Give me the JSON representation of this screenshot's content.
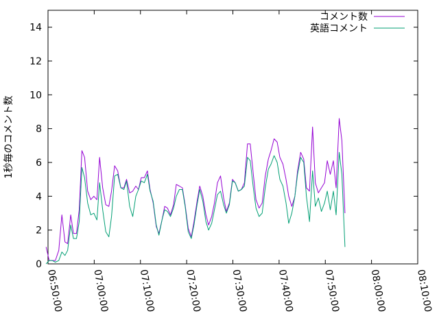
{
  "chart_data": {
    "type": "line",
    "title": "",
    "xlabel": "",
    "ylabel": "1秒毎のコメント数",
    "xlim": [
      "06:50:00",
      "08:10:00"
    ],
    "ylim": [
      0,
      15
    ],
    "xticks": [
      "06:50:00",
      "07:00:00",
      "07:10:00",
      "07:20:00",
      "07:30:00",
      "07:40:00",
      "07:50:00",
      "08:00:00",
      "08:10:00"
    ],
    "yticks": [
      0,
      2,
      4,
      6,
      8,
      10,
      12,
      14
    ],
    "grid": false,
    "legend": "top-right",
    "series": [
      {
        "name": "コメント数",
        "color": "#9400d3",
        "points": [
          [
            "06:49:35",
            1.0
          ],
          [
            "06:50:15",
            0.2
          ],
          [
            "06:50:55",
            0.2
          ],
          [
            "06:51:35",
            0.2
          ],
          [
            "06:52:20",
            0.8
          ],
          [
            "06:53:00",
            2.9
          ],
          [
            "06:53:40",
            1.3
          ],
          [
            "06:54:15",
            1.2
          ],
          [
            "06:54:55",
            2.9
          ],
          [
            "06:55:30",
            1.8
          ],
          [
            "06:56:10",
            1.8
          ],
          [
            "06:56:45",
            3.2
          ],
          [
            "06:57:20",
            6.7
          ],
          [
            "06:57:55",
            6.3
          ],
          [
            "06:58:35",
            4.3
          ],
          [
            "06:59:15",
            3.8
          ],
          [
            "06:59:55",
            4.0
          ],
          [
            "07:00:35",
            3.8
          ],
          [
            "07:01:10",
            6.3
          ],
          [
            "07:01:50",
            4.5
          ],
          [
            "07:02:30",
            3.5
          ],
          [
            "07:03:10",
            3.4
          ],
          [
            "07:03:45",
            4.3
          ],
          [
            "07:04:25",
            5.8
          ],
          [
            "07:05:05",
            5.5
          ],
          [
            "07:05:45",
            4.5
          ],
          [
            "07:06:25",
            4.5
          ],
          [
            "07:07:00",
            5.0
          ],
          [
            "07:07:40",
            4.2
          ],
          [
            "07:08:20",
            4.3
          ],
          [
            "07:09:00",
            4.6
          ],
          [
            "07:09:35",
            4.4
          ],
          [
            "07:10:10",
            5.1
          ],
          [
            "07:10:50",
            5.1
          ],
          [
            "07:11:30",
            5.5
          ],
          [
            "07:12:05",
            4.4
          ],
          [
            "07:12:45",
            3.6
          ],
          [
            "07:13:25",
            2.2
          ],
          [
            "07:14:00",
            1.8
          ],
          [
            "07:14:40",
            2.6
          ],
          [
            "07:15:15",
            3.4
          ],
          [
            "07:15:50",
            3.3
          ],
          [
            "07:16:30",
            2.9
          ],
          [
            "07:17:10",
            3.5
          ],
          [
            "07:17:45",
            4.7
          ],
          [
            "07:18:25",
            4.6
          ],
          [
            "07:19:05",
            4.5
          ],
          [
            "07:19:40",
            3.5
          ],
          [
            "07:20:20",
            2.1
          ],
          [
            "07:21:00",
            1.6
          ],
          [
            "07:21:35",
            2.5
          ],
          [
            "07:22:15",
            3.7
          ],
          [
            "07:22:50",
            4.6
          ],
          [
            "07:23:30",
            4.0
          ],
          [
            "07:24:10",
            2.9
          ],
          [
            "07:24:45",
            2.3
          ],
          [
            "07:25:25",
            2.8
          ],
          [
            "07:26:00",
            3.6
          ],
          [
            "07:26:40",
            4.8
          ],
          [
            "07:27:20",
            5.2
          ],
          [
            "07:28:00",
            3.9
          ],
          [
            "07:28:35",
            3.1
          ],
          [
            "07:29:15",
            3.6
          ],
          [
            "07:29:55",
            5.0
          ],
          [
            "07:30:30",
            4.8
          ],
          [
            "07:31:10",
            4.3
          ],
          [
            "07:31:50",
            4.4
          ],
          [
            "07:32:30",
            4.8
          ],
          [
            "07:33:10",
            7.1
          ],
          [
            "07:33:45",
            7.1
          ],
          [
            "07:34:25",
            5.3
          ],
          [
            "07:35:00",
            3.8
          ],
          [
            "07:35:40",
            3.3
          ],
          [
            "07:36:20",
            3.6
          ],
          [
            "07:37:00",
            5.2
          ],
          [
            "07:37:40",
            6.2
          ],
          [
            "07:38:15",
            6.7
          ],
          [
            "07:38:55",
            7.4
          ],
          [
            "07:39:35",
            7.2
          ],
          [
            "07:40:10",
            6.3
          ],
          [
            "07:40:50",
            5.9
          ],
          [
            "07:41:30",
            5.0
          ],
          [
            "07:42:05",
            4.0
          ],
          [
            "07:42:45",
            3.4
          ],
          [
            "07:43:25",
            4.0
          ],
          [
            "07:44:00",
            5.5
          ],
          [
            "07:44:40",
            6.6
          ],
          [
            "07:45:20",
            6.2
          ],
          [
            "07:45:55",
            4.5
          ],
          [
            "07:46:35",
            4.3
          ],
          [
            "07:47:15",
            8.1
          ],
          [
            "07:47:50",
            4.8
          ],
          [
            "07:48:30",
            4.2
          ],
          [
            "07:49:10",
            4.5
          ],
          [
            "07:49:50",
            4.8
          ],
          [
            "07:50:25",
            6.1
          ],
          [
            "07:51:05",
            5.3
          ],
          [
            "07:51:45",
            6.1
          ],
          [
            "07:52:20",
            4.5
          ],
          [
            "07:53:00",
            8.6
          ],
          [
            "07:53:35",
            7.3
          ],
          [
            "07:54:15",
            3.0
          ]
        ]
      },
      {
        "name": "英語コメント",
        "color": "#009e73",
        "points": [
          [
            "06:49:35",
            0.0
          ],
          [
            "06:50:15",
            0.2
          ],
          [
            "06:50:55",
            0.2
          ],
          [
            "06:51:35",
            0.1
          ],
          [
            "06:52:20",
            0.2
          ],
          [
            "06:53:00",
            0.7
          ],
          [
            "06:53:40",
            0.5
          ],
          [
            "06:54:15",
            0.8
          ],
          [
            "06:54:55",
            2.3
          ],
          [
            "06:55:30",
            1.5
          ],
          [
            "06:56:10",
            1.5
          ],
          [
            "06:56:45",
            2.5
          ],
          [
            "06:57:20",
            5.7
          ],
          [
            "06:57:55",
            5.1
          ],
          [
            "06:58:35",
            3.6
          ],
          [
            "06:59:15",
            2.9
          ],
          [
            "06:59:55",
            3.0
          ],
          [
            "07:00:35",
            2.6
          ],
          [
            "07:01:10",
            4.8
          ],
          [
            "07:01:50",
            3.2
          ],
          [
            "07:02:30",
            1.9
          ],
          [
            "07:03:10",
            1.6
          ],
          [
            "07:03:45",
            2.8
          ],
          [
            "07:04:25",
            5.2
          ],
          [
            "07:05:05",
            5.3
          ],
          [
            "07:05:45",
            4.5
          ],
          [
            "07:06:25",
            4.4
          ],
          [
            "07:07:00",
            4.9
          ],
          [
            "07:07:40",
            3.4
          ],
          [
            "07:08:20",
            2.8
          ],
          [
            "07:09:00",
            4.0
          ],
          [
            "07:09:35",
            4.4
          ],
          [
            "07:10:10",
            4.9
          ],
          [
            "07:10:50",
            4.8
          ],
          [
            "07:11:30",
            5.3
          ],
          [
            "07:12:05",
            4.3
          ],
          [
            "07:12:45",
            3.7
          ],
          [
            "07:13:25",
            2.3
          ],
          [
            "07:14:00",
            1.7
          ],
          [
            "07:14:40",
            2.6
          ],
          [
            "07:15:15",
            3.2
          ],
          [
            "07:15:50",
            3.1
          ],
          [
            "07:16:30",
            2.8
          ],
          [
            "07:17:10",
            3.3
          ],
          [
            "07:17:45",
            4.0
          ],
          [
            "07:18:25",
            4.4
          ],
          [
            "07:19:05",
            4.4
          ],
          [
            "07:19:40",
            3.4
          ],
          [
            "07:20:20",
            1.9
          ],
          [
            "07:21:00",
            1.5
          ],
          [
            "07:21:35",
            2.3
          ],
          [
            "07:22:15",
            3.5
          ],
          [
            "07:22:50",
            4.4
          ],
          [
            "07:23:30",
            3.7
          ],
          [
            "07:24:10",
            2.5
          ],
          [
            "07:24:45",
            2.0
          ],
          [
            "07:25:25",
            2.4
          ],
          [
            "07:26:00",
            3.2
          ],
          [
            "07:26:40",
            4.1
          ],
          [
            "07:27:20",
            4.3
          ],
          [
            "07:28:00",
            3.5
          ],
          [
            "07:28:35",
            3.0
          ],
          [
            "07:29:15",
            3.5
          ],
          [
            "07:29:55",
            4.9
          ],
          [
            "07:30:30",
            4.8
          ],
          [
            "07:31:10",
            4.3
          ],
          [
            "07:31:50",
            4.4
          ],
          [
            "07:32:30",
            4.6
          ],
          [
            "07:33:10",
            6.3
          ],
          [
            "07:33:45",
            6.1
          ],
          [
            "07:34:25",
            4.5
          ],
          [
            "07:35:00",
            3.3
          ],
          [
            "07:35:40",
            2.8
          ],
          [
            "07:36:20",
            3.0
          ],
          [
            "07:37:00",
            4.5
          ],
          [
            "07:37:40",
            5.6
          ],
          [
            "07:38:15",
            5.9
          ],
          [
            "07:38:55",
            6.4
          ],
          [
            "07:39:35",
            6.0
          ],
          [
            "07:40:10",
            5.0
          ],
          [
            "07:40:50",
            4.6
          ],
          [
            "07:41:30",
            3.6
          ],
          [
            "07:42:05",
            2.4
          ],
          [
            "07:42:45",
            3.0
          ],
          [
            "07:43:25",
            4.0
          ],
          [
            "07:44:00",
            5.3
          ],
          [
            "07:44:40",
            6.3
          ],
          [
            "07:45:20",
            6.0
          ],
          [
            "07:45:55",
            4.0
          ],
          [
            "07:46:35",
            2.5
          ],
          [
            "07:47:15",
            5.5
          ],
          [
            "07:47:50",
            3.4
          ],
          [
            "07:48:30",
            3.9
          ],
          [
            "07:49:10",
            3.1
          ],
          [
            "07:49:50",
            3.6
          ],
          [
            "07:50:25",
            4.3
          ],
          [
            "07:51:05",
            3.2
          ],
          [
            "07:51:45",
            4.3
          ],
          [
            "07:52:20",
            2.9
          ],
          [
            "07:53:00",
            6.6
          ],
          [
            "07:53:35",
            5.3
          ],
          [
            "07:54:15",
            1.0
          ]
        ]
      }
    ]
  }
}
